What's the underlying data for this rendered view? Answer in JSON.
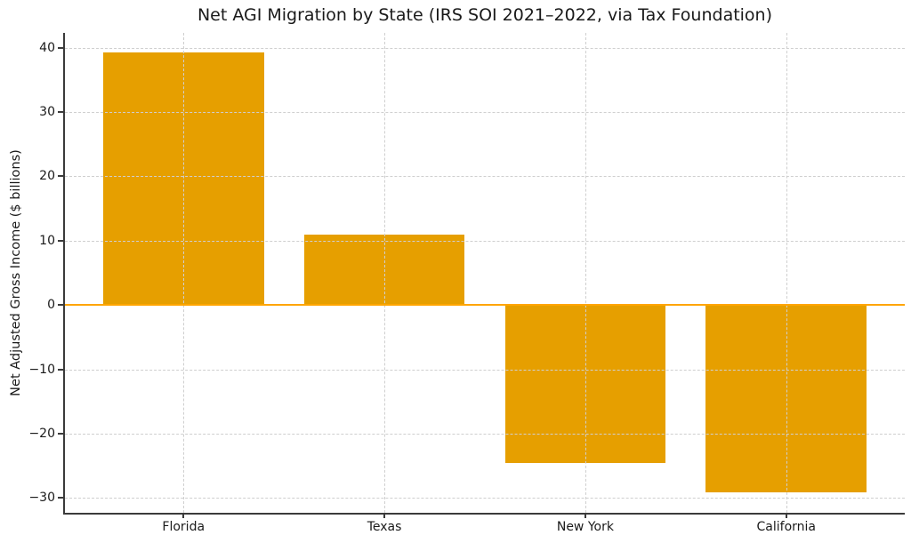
{
  "chart_data": {
    "type": "bar",
    "title": "Net AGI Migration by State (IRS SOI 2021–2022, via Tax Foundation)",
    "xlabel": "",
    "ylabel": "Net Adjusted Gross Income ($ billions)",
    "categories": [
      "Florida",
      "Texas",
      "New York",
      "California"
    ],
    "values": [
      39.2,
      10.9,
      -24.5,
      -29.1
    ],
    "yticks": [
      -30,
      -20,
      -10,
      0,
      10,
      20,
      30,
      40
    ],
    "ytick_labels": [
      "−30",
      "−20",
      "−10",
      "0",
      "10",
      "20",
      "30",
      "40"
    ],
    "ylim": [
      -32.3,
      42.3
    ],
    "grid": true,
    "grid_style": "dashed",
    "legend_position": "none",
    "bar_color": "#E69F00",
    "zero_line_color": "#FFA500",
    "grid_color": "#cfcfcf",
    "axis_color": "#3b3b3b",
    "text_color": "#1a1a1a",
    "background_color": "#ffffff"
  }
}
